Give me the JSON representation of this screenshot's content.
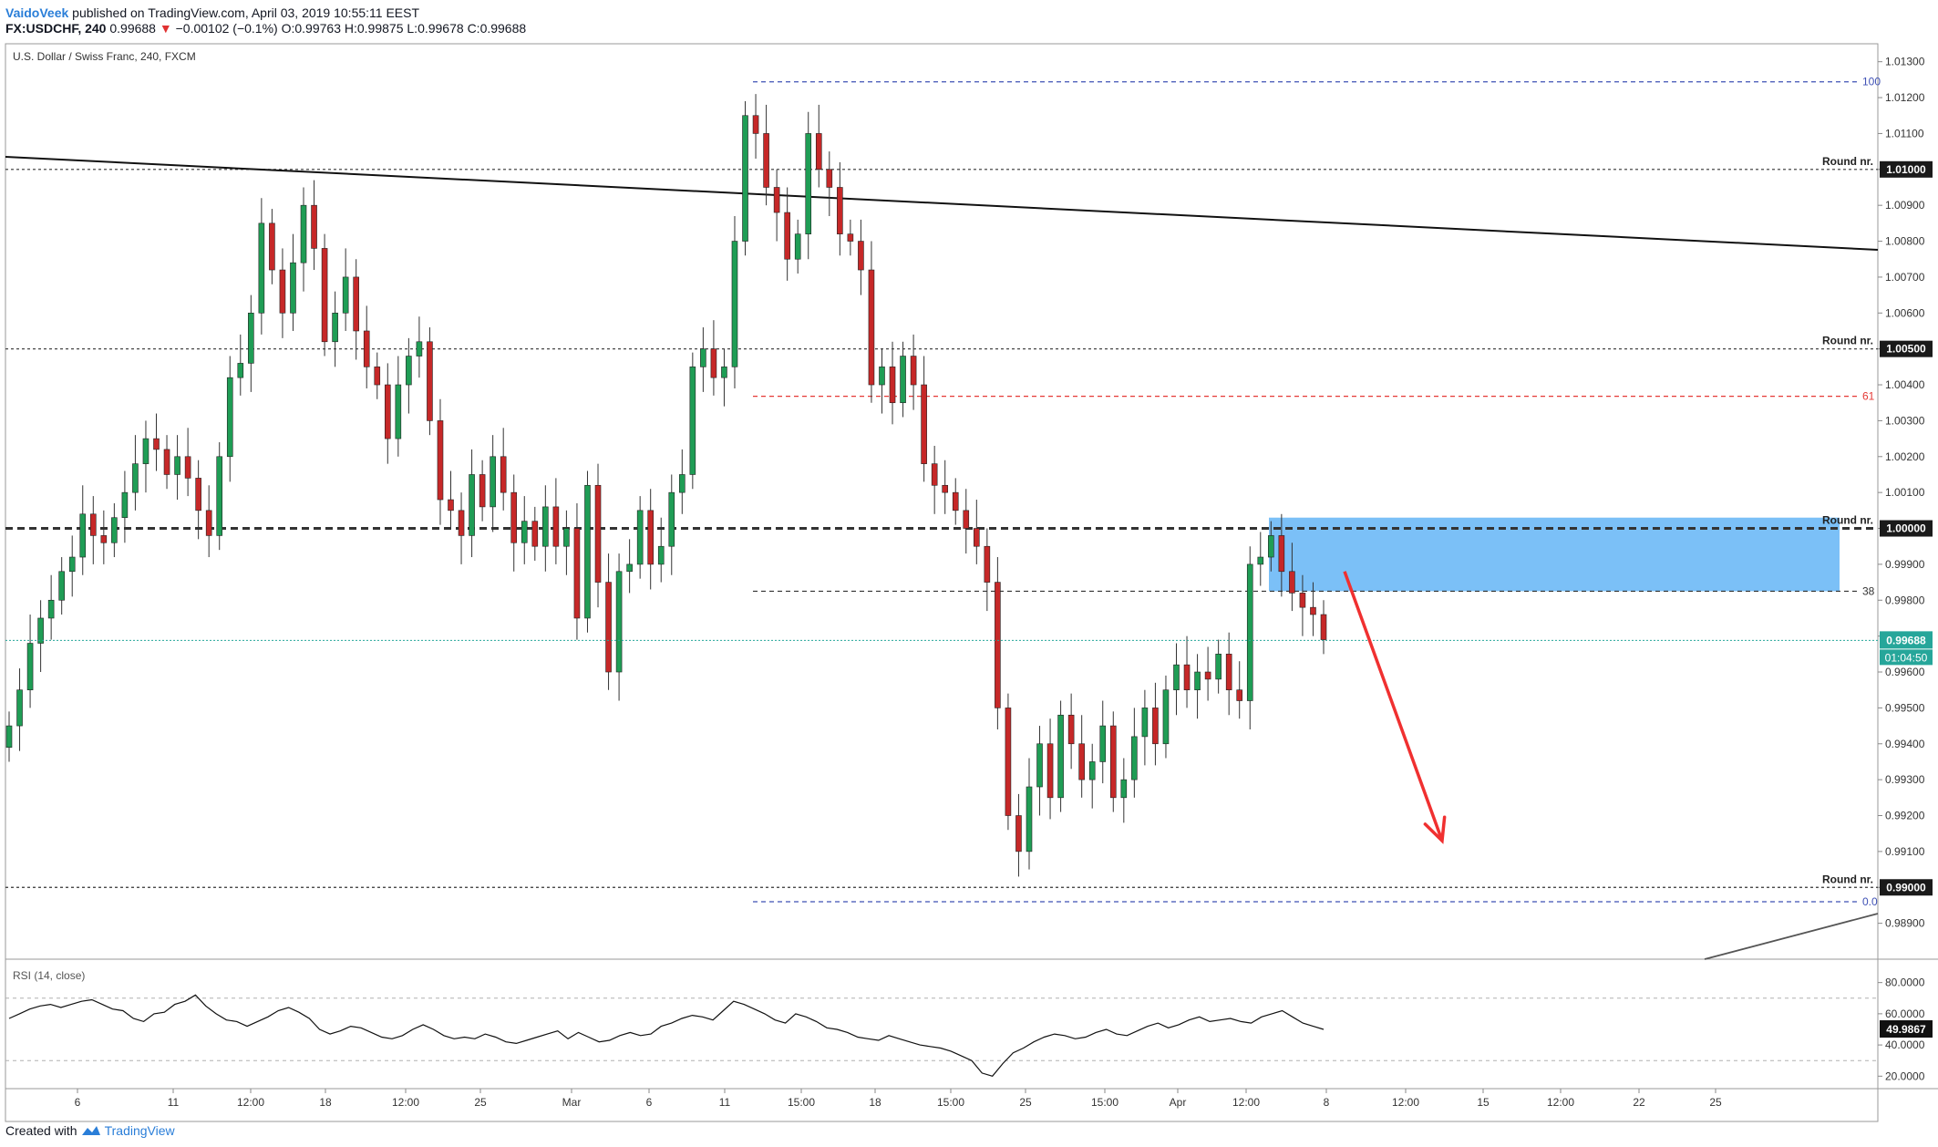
{
  "header": {
    "author": "VaidoVeek",
    "published_text": " published on TradingView.com, April 03, 2019 10:55:11 EEST",
    "symbol": "FX:USDCHF, 240",
    "last": "0.99688",
    "change": "−0.00102 (−0.1%)",
    "ohlc": {
      "o_label": "O:",
      "o": "0.99763",
      "h_label": "H:",
      "h": "0.99875",
      "l_label": "L:",
      "l": "0.99678",
      "c_label": "C:",
      "c": "0.99688"
    }
  },
  "footer": {
    "created_with": "Created with",
    "brand": "TradingView"
  },
  "chart_data": {
    "type": "candlestick",
    "title": "U.S. Dollar / Swiss Franc, 240, FXCM",
    "y_range": [
      0.988,
      1.0135
    ],
    "y_ticks": [
      "1.01300",
      "1.01200",
      "1.01100",
      "1.01000",
      "1.00900",
      "1.00800",
      "1.00700",
      "1.00600",
      "1.00500",
      "1.00400",
      "1.00300",
      "1.00200",
      "1.00100",
      "1.00000",
      "0.99900",
      "0.99800",
      "0.99700",
      "0.99600",
      "0.99500",
      "0.99400",
      "0.99300",
      "0.99200",
      "0.99100",
      "0.99000",
      "0.98900"
    ],
    "x_ticks": [
      "6",
      "11",
      "12:00",
      "18",
      "12:00",
      "25",
      "Mar",
      "6",
      "11",
      "15:00",
      "18",
      "15:00",
      "25",
      "15:00",
      "Apr",
      "12:00",
      "8",
      "12:00",
      "15",
      "12:00",
      "22",
      "25"
    ],
    "last_price": {
      "value": 0.99688,
      "label": "0.99688",
      "countdown": "01:04:50",
      "color": "#26a69a"
    },
    "round_levels": [
      {
        "value": 1.01,
        "label": "Round nr.",
        "price_label": "1.01000"
      },
      {
        "value": 1.005,
        "label": "Round nr.",
        "price_label": "1.00500"
      },
      {
        "value": 1.0,
        "label": "Round nr.",
        "price_label": "1.00000"
      },
      {
        "value": 0.99,
        "label": "Round nr.",
        "price_label": "0.99000"
      }
    ],
    "fibonacci": [
      {
        "level": "100",
        "value": 1.01244,
        "color": "#3f51b5"
      },
      {
        "level": "61",
        "value": 1.00368,
        "color": "#e53935"
      },
      {
        "level": "38",
        "value": 0.99825,
        "color": "#333333"
      },
      {
        "level": "0.0",
        "value": 0.9896,
        "color": "#3f51b5"
      }
    ],
    "supply_zone": {
      "top": 1.0003,
      "bottom": 0.99825,
      "color": "#64b5f6"
    },
    "close_path": [
      0.9945,
      0.9955,
      0.9968,
      0.9975,
      0.998,
      0.9988,
      0.9992,
      1.0004,
      0.9998,
      0.9996,
      1.0003,
      1.001,
      1.0018,
      1.0025,
      1.0022,
      1.0015,
      1.002,
      1.0014,
      1.0005,
      0.9998,
      1.002,
      1.0042,
      1.0046,
      1.006,
      1.0085,
      1.0072,
      1.006,
      1.0074,
      1.009,
      1.0078,
      1.0052,
      1.006,
      1.007,
      1.0055,
      1.0045,
      1.004,
      1.0025,
      1.004,
      1.0048,
      1.0052,
      1.003,
      1.0008,
      1.0005,
      0.9998,
      1.0015,
      1.0006,
      1.002,
      1.001,
      0.9996,
      1.0002,
      0.9995,
      1.0006,
      0.9995,
      1.0,
      0.9975,
      1.0012,
      0.9985,
      0.996,
      0.9988,
      0.999,
      1.0005,
      0.999,
      0.9995,
      1.001,
      1.0015,
      1.0045,
      1.005,
      1.0042,
      1.0045,
      1.008,
      1.0115,
      1.011,
      1.0095,
      1.0088,
      1.0075,
      1.0082,
      1.011,
      1.01,
      1.0095,
      1.0082,
      1.008,
      1.0072,
      1.004,
      1.0045,
      1.0035,
      1.0048,
      1.004,
      1.0018,
      1.0012,
      1.001,
      1.0005,
      1.0,
      0.9995,
      0.9985,
      0.995,
      0.992,
      0.991,
      0.9928,
      0.994,
      0.9925,
      0.9948,
      0.994,
      0.993,
      0.9935,
      0.9945,
      0.9925,
      0.993,
      0.9942,
      0.995,
      0.994,
      0.9955,
      0.9962,
      0.9955,
      0.996,
      0.9958,
      0.9965,
      0.9955,
      0.9952,
      0.999,
      0.9992,
      0.9998,
      0.9988,
      0.9982,
      0.9978,
      0.9976,
      0.9969
    ],
    "projection_arrow": {
      "from_x_frac": 0.725,
      "from_value": 0.9988,
      "to_x_frac": 0.773,
      "to_value": 0.9913,
      "color": "#f03030"
    },
    "rsi": {
      "title": "RSI (14, close)",
      "ticks": [
        "80.0000",
        "60.0000",
        "40.0000",
        "20.0000"
      ],
      "bands": [
        70,
        30
      ],
      "current": "49.9867",
      "values": [
        57,
        60,
        63,
        65,
        66,
        64,
        66,
        68,
        69,
        66,
        63,
        62,
        57,
        55,
        60,
        61,
        66,
        68,
        72,
        65,
        60,
        56,
        55,
        52,
        55,
        58,
        62,
        64,
        61,
        57,
        50,
        47,
        49,
        52,
        51,
        48,
        45,
        44,
        46,
        50,
        53,
        50,
        46,
        44,
        45,
        44,
        47,
        45,
        42,
        41,
        43,
        45,
        47,
        49,
        44,
        48,
        45,
        42,
        43,
        46,
        48,
        46,
        47,
        52,
        54,
        57,
        59,
        58,
        56,
        62,
        68,
        66,
        63,
        60,
        56,
        54,
        60,
        58,
        55,
        51,
        50,
        48,
        45,
        44,
        43,
        46,
        44,
        42,
        40,
        39,
        38,
        36,
        33,
        30,
        22,
        20,
        28,
        35,
        38,
        42,
        45,
        47,
        46,
        44,
        45,
        48,
        50,
        47,
        46,
        49,
        52,
        54,
        51,
        53,
        56,
        58,
        55,
        56,
        57,
        55,
        54,
        58,
        60,
        62,
        58,
        54,
        52,
        50
      ]
    }
  }
}
